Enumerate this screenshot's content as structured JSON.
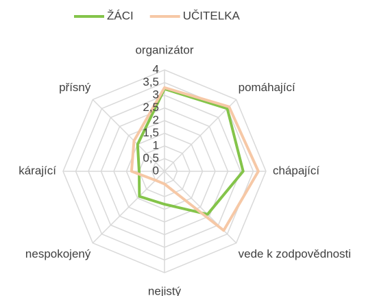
{
  "chart_data": {
    "type": "radar",
    "categories": [
      "organizátor",
      "pomáhající",
      "chápající",
      "vede k zodpovědnosti",
      "nejistý",
      "nespokojený",
      "kárající",
      "přísný"
    ],
    "series": [
      {
        "name": "ŽÁCI",
        "color": "#84c44a",
        "values": [
          3.25,
          3.5,
          3.1,
          2.4,
          1.3,
          1.4,
          1.0,
          1.5
        ]
      },
      {
        "name": "UČITELKA",
        "color": "#f6c8a6",
        "values": [
          3.3,
          3.6,
          3.7,
          3.3,
          0.5,
          0.5,
          1.3,
          1.7
        ]
      }
    ],
    "ylim": [
      0,
      4
    ],
    "yticks": [
      0,
      {
        "value": 0.5,
        "label": "0,5"
      },
      1,
      {
        "value": 1.5,
        "label": "1,5"
      },
      2,
      {
        "value": 2.5,
        "label": "2,5"
      },
      3,
      {
        "value": 3.5,
        "label": "3,5"
      },
      4
    ],
    "grid": true,
    "legend": "top"
  }
}
